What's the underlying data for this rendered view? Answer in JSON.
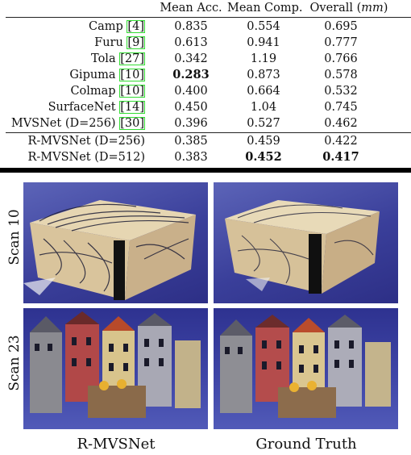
{
  "table": {
    "header": {
      "acc": "Mean Acc.",
      "comp": "Mean Comp.",
      "overall_prefix": "Overall (",
      "overall_unit": "mm",
      "overall_suffix": ")"
    },
    "rows": [
      {
        "name": "Camp",
        "cite": "4",
        "acc": "0.835",
        "comp": "0.554",
        "overall": "0.695"
      },
      {
        "name": "Furu",
        "cite": "9",
        "acc": "0.613",
        "comp": "0.941",
        "overall": "0.777"
      },
      {
        "name": "Tola",
        "cite": "27",
        "acc": "0.342",
        "comp": "1.19",
        "overall": "0.766"
      },
      {
        "name": "Gipuma",
        "cite": "10",
        "acc": "0.283",
        "comp": "0.873",
        "overall": "0.578"
      },
      {
        "name": "Colmap",
        "cite": "10",
        "acc": "0.400",
        "comp": "0.664",
        "overall": "0.532"
      },
      {
        "name": "SurfaceNet",
        "cite": "14",
        "acc": "0.450",
        "comp": "1.04",
        "overall": "0.745"
      },
      {
        "name": "MVSNet (D=256)",
        "cite": "30",
        "acc": "0.396",
        "comp": "0.527",
        "overall": "0.462"
      }
    ],
    "ours": [
      {
        "name": "R-MVSNet (D=256)",
        "acc": "0.385",
        "comp": "0.459",
        "overall": "0.422"
      },
      {
        "name": "R-MVSNet (D=512)",
        "acc": "0.383",
        "comp": "0.452",
        "overall": "0.417"
      }
    ]
  },
  "figure": {
    "rows": [
      "Scan 10",
      "Scan 23"
    ],
    "columns": [
      "R-MVSNet",
      "Ground Truth"
    ]
  }
}
